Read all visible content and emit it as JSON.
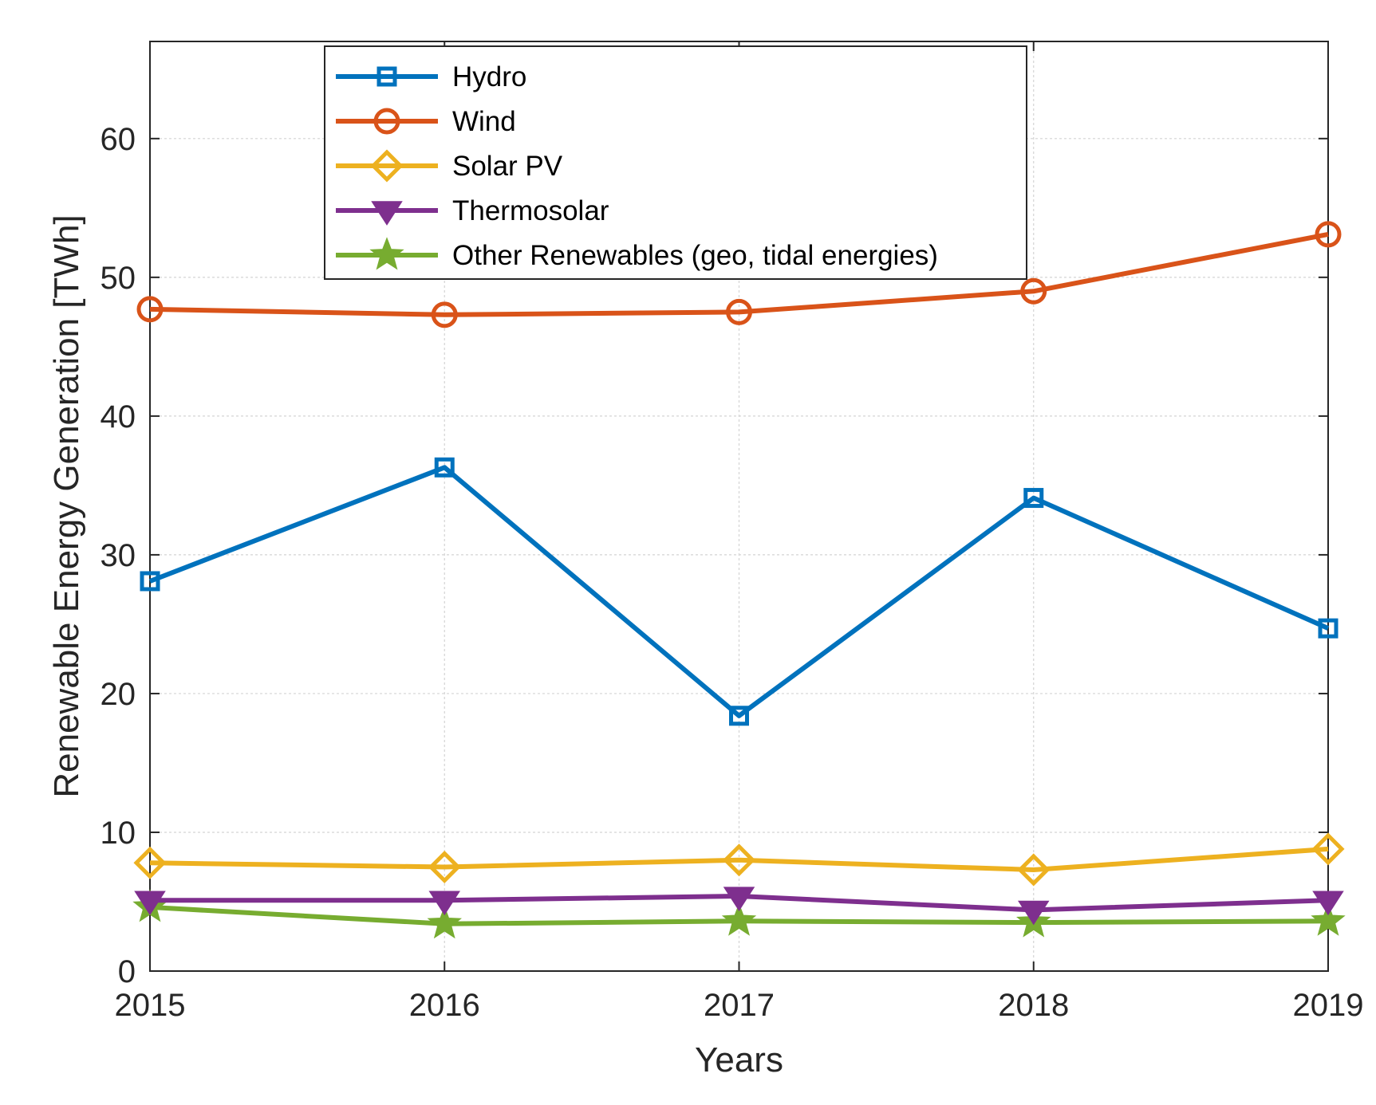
{
  "chart_data": {
    "type": "line",
    "title": "",
    "xlabel": "Years",
    "ylabel": "Renewable Energy Generation [TWh]",
    "x": [
      2015,
      2016,
      2017,
      2018,
      2019
    ],
    "x_tick_labels": [
      "2015",
      "2016",
      "2017",
      "2018",
      "2019"
    ],
    "y_ticks": [
      0,
      10,
      20,
      30,
      40,
      50,
      60
    ],
    "y_tick_labels": [
      "0",
      "10",
      "20",
      "30",
      "40",
      "50",
      "60"
    ],
    "xlim": [
      2015,
      2019
    ],
    "ylim": [
      0,
      67
    ],
    "grid": true,
    "legend_position": "top-center",
    "series": [
      {
        "name": "Hydro",
        "color": "#0072BD",
        "marker": "square",
        "values": [
          28.1,
          36.3,
          18.4,
          34.1,
          24.7
        ]
      },
      {
        "name": "Wind",
        "color": "#D95319",
        "marker": "circle",
        "values": [
          47.7,
          47.3,
          47.5,
          49.0,
          53.1
        ]
      },
      {
        "name": "Solar PV",
        "color": "#EDB120",
        "marker": "diamond",
        "values": [
          7.8,
          7.5,
          8.0,
          7.3,
          8.8
        ]
      },
      {
        "name": "Thermosolar",
        "color": "#7E2F8E",
        "marker": "triangle-down",
        "values": [
          5.1,
          5.1,
          5.4,
          4.4,
          5.1
        ]
      },
      {
        "name": "Other Renewables (geo, tidal energies)",
        "color": "#77AC30",
        "marker": "star",
        "values": [
          4.6,
          3.4,
          3.6,
          3.5,
          3.6
        ]
      }
    ]
  }
}
